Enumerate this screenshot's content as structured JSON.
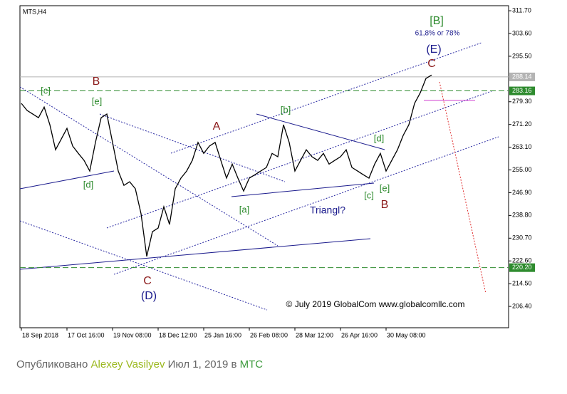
{
  "chart_data": {
    "type": "line",
    "title": "MTS,H4",
    "color": "#000000",
    "values": [
      278.7,
      276.2,
      274.9,
      273.6,
      277.4,
      271.1,
      262.2,
      266.0,
      269.8,
      263.5,
      260.9,
      258.4,
      254.6,
      264.8,
      273.6,
      274.9,
      264.8,
      254.6,
      249.5,
      250.8,
      248.3,
      239.4,
      224.2,
      233.0,
      234.3,
      241.9,
      235.6,
      248.3,
      252.1,
      254.6,
      258.4,
      264.8,
      260.9,
      263.5,
      264.8,
      258.4,
      252.1,
      257.1,
      252.1,
      247.5,
      252.1,
      253.3,
      254.6,
      255.9,
      260.9,
      259.7,
      271.1,
      264.8,
      254.6,
      258.4,
      262.2,
      259.7,
      258.4,
      260.9,
      257.1,
      258.4,
      259.7,
      262.2,
      255.9,
      254.6,
      253.3,
      252.1,
      257.1,
      260.9,
      254.6,
      258.4,
      262.2,
      267.3,
      271.1,
      278.7,
      282.5,
      287.6,
      288.8
    ],
    "xlim": [
      -0.25,
      85.5
    ],
    "xticks": [
      {
        "value": 0,
        "label": "18 Sep 2018"
      },
      {
        "value": 8,
        "label": "17 Oct 16:00"
      },
      {
        "value": 16,
        "label": "19 Nov 08:00"
      },
      {
        "value": 24,
        "label": "18 Dec 12:00"
      },
      {
        "value": 32,
        "label": "25 Jan 16:00"
      },
      {
        "value": 40,
        "label": "26 Feb 08:00"
      },
      {
        "value": 48,
        "label": "28 Mar 12:00"
      },
      {
        "value": 56,
        "label": "26 Apr 16:00"
      },
      {
        "value": 64,
        "label": "30 May 08:00"
      }
    ],
    "ylim": [
      198.8,
      313.5
    ],
    "yticks": [
      {
        "value": 311.7,
        "label": "311.70"
      },
      {
        "value": 303.6,
        "label": "303.60"
      },
      {
        "value": 295.5,
        "label": "295.50"
      },
      {
        "value": 279.3,
        "label": "279.30"
      },
      {
        "value": 271.2,
        "label": "271.20"
      },
      {
        "value": 263.1,
        "label": "263.10"
      },
      {
        "value": 255,
        "label": "255.00"
      },
      {
        "value": 246.9,
        "label": "246.90"
      },
      {
        "value": 238.8,
        "label": "238.80"
      },
      {
        "value": 230.7,
        "label": "230.70"
      },
      {
        "value": 222.6,
        "label": "222.60"
      },
      {
        "value": 214.5,
        "label": "214.50"
      },
      {
        "value": 206.4,
        "label": "206.40"
      }
    ],
    "hlines": [
      {
        "value": 288.14,
        "label": "288.14",
        "color": "#b4b4b4",
        "dashed": false
      },
      {
        "value": 283.16,
        "label": "283.16",
        "color": "#2e8b2e",
        "dashed": true
      },
      {
        "value": 220.2,
        "label": "220.20",
        "color": "#2e8b2e",
        "dashed": true
      }
    ],
    "annotations": [
      {
        "text": "[B]",
        "color": "#2e8b2e"
      },
      {
        "text": "61,8% or 78%",
        "color": "#1a1a8c"
      },
      {
        "text": "(E)",
        "color": "#1a1a8c"
      },
      {
        "text": "C",
        "color": "#8b1a1a"
      },
      {
        "text": "B",
        "color": "#8b1a1a"
      },
      {
        "text": "[c]",
        "color": "#2e8b2e"
      },
      {
        "text": "[e]",
        "color": "#2e8b2e"
      },
      {
        "text": "A",
        "color": "#8b1a1a"
      },
      {
        "text": "[b]",
        "color": "#2e8b2e"
      },
      {
        "text": "[d]",
        "color": "#2e8b2e"
      },
      {
        "text": "[d]",
        "color": "#2e8b2e"
      },
      {
        "text": "[a]",
        "color": "#2e8b2e"
      },
      {
        "text": "Triangl?",
        "color": "#1a1a8c"
      },
      {
        "text": "[c]",
        "color": "#2e8b2e"
      },
      {
        "text": "[e]",
        "color": "#2e8b2e"
      },
      {
        "text": "B",
        "color": "#8b1a1a"
      },
      {
        "text": "C",
        "color": "#8b1a1a"
      },
      {
        "text": "(D)",
        "color": "#1a1a8c"
      },
      {
        "text": "© July 2019 GlobalCom www.globalcomllc.com",
        "color": "#000000"
      }
    ]
  },
  "footer": {
    "prefix": "Опубликовано",
    "author": "Alexey Vasilyev",
    "date": "Июл 1, 2019 в",
    "symbol": "МТС"
  }
}
